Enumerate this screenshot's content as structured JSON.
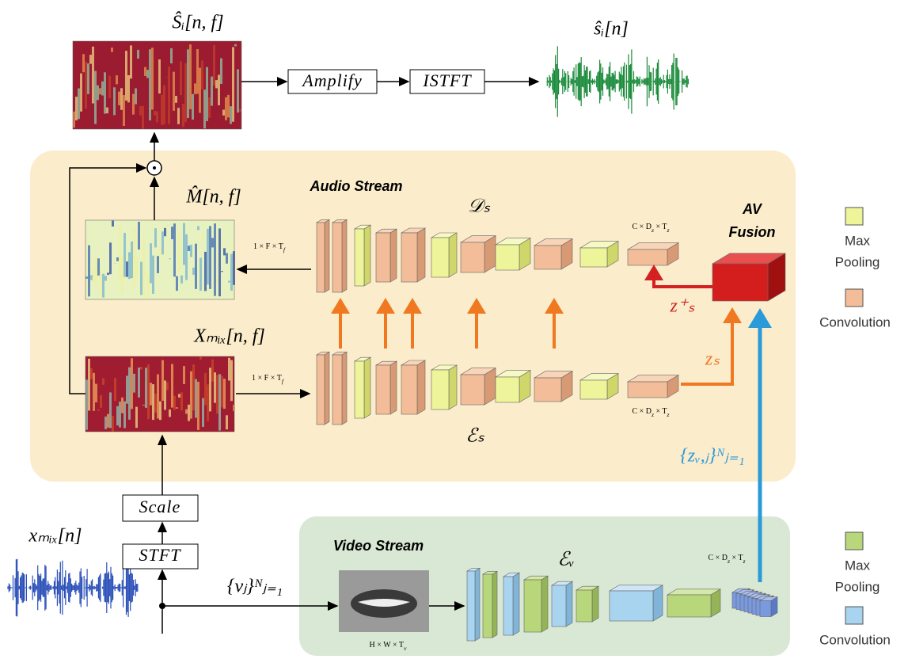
{
  "output": {
    "spectrogram_label": "Ŝᵢ[n, f]",
    "waveform_label": "ŝᵢ[n]",
    "amplify": "Amplify",
    "istft": "ISTFT"
  },
  "audio_stream": {
    "title": "Audio Stream",
    "decoder_label": "𝒟ₛ",
    "encoder_label": "ℰₛ",
    "mask_label": "M̂[n, f]",
    "mix_label": "Xₘᵢₓ[n, f]",
    "mask_dims": [
      "1 × F × T",
      "f"
    ],
    "mix_dims": [
      "1 × F × T",
      "f"
    ],
    "decoder_dims": [
      "C × D",
      "z",
      " × T",
      "z"
    ],
    "encoder_dims": [
      "C × D",
      "z",
      " × T",
      "z"
    ],
    "fused_label": "z⁺ₛ",
    "encoded_label": "zₛ",
    "video_embeddings_label": "{zᵥ,ⱼ}ᴺⱼ₌₁"
  },
  "fusion": {
    "title_lines": [
      "AV",
      "Fusion"
    ]
  },
  "input": {
    "waveform_label": "xₘᵢₓ[n]",
    "stft": "STFT",
    "scale": "Scale",
    "frames_label": "{vⱼ}ᴺⱼ₌₁"
  },
  "video_stream": {
    "title": "Video Stream",
    "encoder_label": "ℰᵥ",
    "input_dims": [
      "H × W × T",
      "v"
    ],
    "output_dims": [
      "C × D",
      "z",
      " × T",
      "z"
    ]
  },
  "legends": [
    {
      "items": [
        {
          "label_lines": [
            "Max",
            "Pooling"
          ]
        },
        {
          "label_lines": [
            "Convolution"
          ]
        }
      ]
    },
    {
      "items": [
        {
          "label_lines": [
            "Max",
            "Pooling"
          ]
        },
        {
          "label_lines": [
            "Convolution"
          ]
        }
      ]
    }
  ]
}
